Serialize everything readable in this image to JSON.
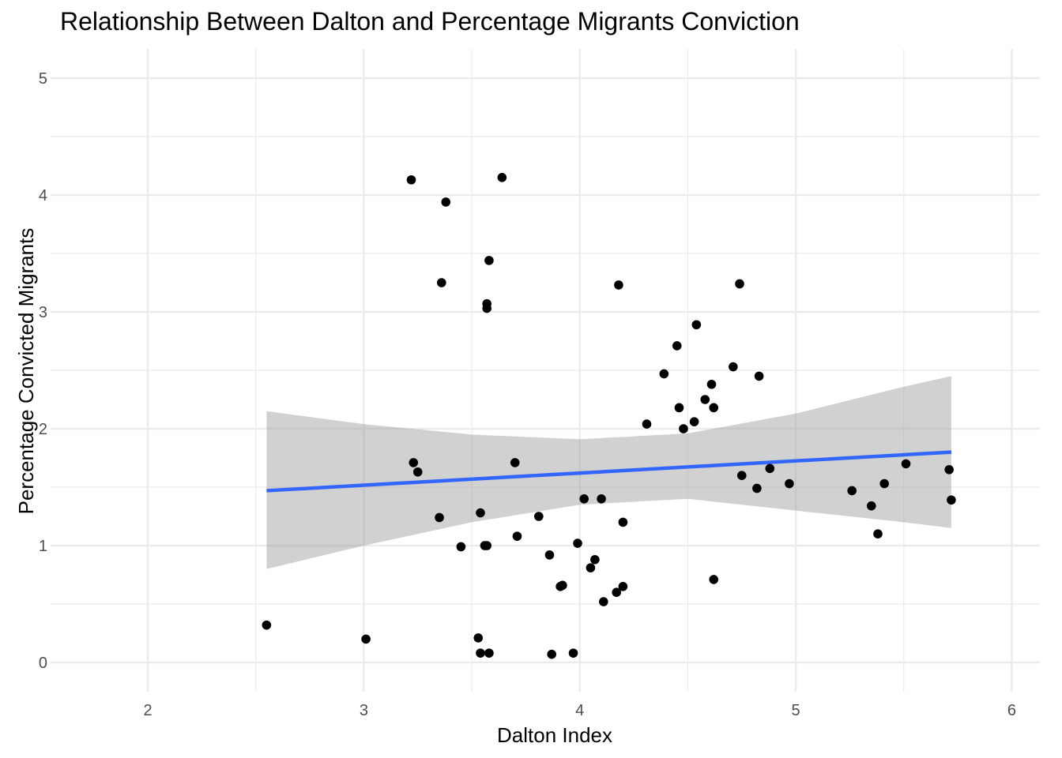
{
  "chart_data": {
    "type": "scatter",
    "title": "Relationship Between Dalton and Percentage Migrants Conviction",
    "xlabel": "Dalton Index",
    "ylabel": "Percentage Convicted Migrants",
    "xlim": [
      1.55,
      6.13
    ],
    "ylim": [
      -0.25,
      5.25
    ],
    "xticks": [
      2,
      3,
      4,
      5,
      6
    ],
    "yticks": [
      0,
      1,
      2,
      3,
      4,
      5
    ],
    "grid": true,
    "legend": "none",
    "points": [
      {
        "x": 2.55,
        "y": 0.32
      },
      {
        "x": 3.01,
        "y": 0.2
      },
      {
        "x": 3.22,
        "y": 4.13
      },
      {
        "x": 3.38,
        "y": 3.94
      },
      {
        "x": 3.64,
        "y": 4.15
      },
      {
        "x": 3.58,
        "y": 3.44
      },
      {
        "x": 3.36,
        "y": 3.25
      },
      {
        "x": 3.57,
        "y": 3.07
      },
      {
        "x": 3.57,
        "y": 3.03
      },
      {
        "x": 4.18,
        "y": 3.23
      },
      {
        "x": 4.74,
        "y": 3.24
      },
      {
        "x": 4.54,
        "y": 2.89
      },
      {
        "x": 4.45,
        "y": 2.71
      },
      {
        "x": 4.71,
        "y": 2.53
      },
      {
        "x": 4.39,
        "y": 2.47
      },
      {
        "x": 4.83,
        "y": 2.45
      },
      {
        "x": 4.61,
        "y": 2.38
      },
      {
        "x": 4.58,
        "y": 2.25
      },
      {
        "x": 4.46,
        "y": 2.18
      },
      {
        "x": 4.62,
        "y": 2.18
      },
      {
        "x": 4.31,
        "y": 2.04
      },
      {
        "x": 4.53,
        "y": 2.06
      },
      {
        "x": 4.48,
        "y": 2.0
      },
      {
        "x": 3.23,
        "y": 1.71
      },
      {
        "x": 3.25,
        "y": 1.63
      },
      {
        "x": 3.7,
        "y": 1.71
      },
      {
        "x": 4.75,
        "y": 1.6
      },
      {
        "x": 4.88,
        "y": 1.66
      },
      {
        "x": 4.82,
        "y": 1.49
      },
      {
        "x": 4.97,
        "y": 1.53
      },
      {
        "x": 5.26,
        "y": 1.47
      },
      {
        "x": 5.35,
        "y": 1.34
      },
      {
        "x": 5.41,
        "y": 1.53
      },
      {
        "x": 5.51,
        "y": 1.7
      },
      {
        "x": 5.71,
        "y": 1.65
      },
      {
        "x": 5.72,
        "y": 1.39
      },
      {
        "x": 5.38,
        "y": 1.1
      },
      {
        "x": 3.35,
        "y": 1.24
      },
      {
        "x": 3.54,
        "y": 1.28
      },
      {
        "x": 3.81,
        "y": 1.25
      },
      {
        "x": 4.02,
        "y": 1.4
      },
      {
        "x": 4.1,
        "y": 1.4
      },
      {
        "x": 4.2,
        "y": 1.2
      },
      {
        "x": 3.45,
        "y": 0.99
      },
      {
        "x": 3.56,
        "y": 1.0
      },
      {
        "x": 3.57,
        "y": 1.0
      },
      {
        "x": 3.71,
        "y": 1.08
      },
      {
        "x": 3.86,
        "y": 0.92
      },
      {
        "x": 3.99,
        "y": 1.02
      },
      {
        "x": 4.05,
        "y": 0.81
      },
      {
        "x": 4.07,
        "y": 0.88
      },
      {
        "x": 3.91,
        "y": 0.65
      },
      {
        "x": 3.92,
        "y": 0.66
      },
      {
        "x": 4.17,
        "y": 0.6
      },
      {
        "x": 4.2,
        "y": 0.65
      },
      {
        "x": 4.62,
        "y": 0.71
      },
      {
        "x": 4.11,
        "y": 0.52
      },
      {
        "x": 3.53,
        "y": 0.21
      },
      {
        "x": 3.54,
        "y": 0.08
      },
      {
        "x": 3.58,
        "y": 0.08
      },
      {
        "x": 3.87,
        "y": 0.07
      },
      {
        "x": 3.97,
        "y": 0.08
      }
    ],
    "trend_line": {
      "method": "linear",
      "x": [
        2.55,
        5.72
      ],
      "y": [
        1.47,
        1.8
      ],
      "color": "#3366ff"
    },
    "confidence_band": {
      "x": [
        2.55,
        3.0,
        3.5,
        4.0,
        4.5,
        5.0,
        5.5,
        5.72
      ],
      "upper": [
        2.15,
        2.04,
        1.95,
        1.91,
        1.96,
        2.13,
        2.36,
        2.45
      ],
      "lower": [
        0.8,
        1.0,
        1.2,
        1.35,
        1.4,
        1.3,
        1.2,
        1.15
      ],
      "color": "#999999"
    },
    "colors": {
      "point": "#000000",
      "grid": "#ebebeb",
      "band": "#999999",
      "line": "#3366ff"
    }
  }
}
